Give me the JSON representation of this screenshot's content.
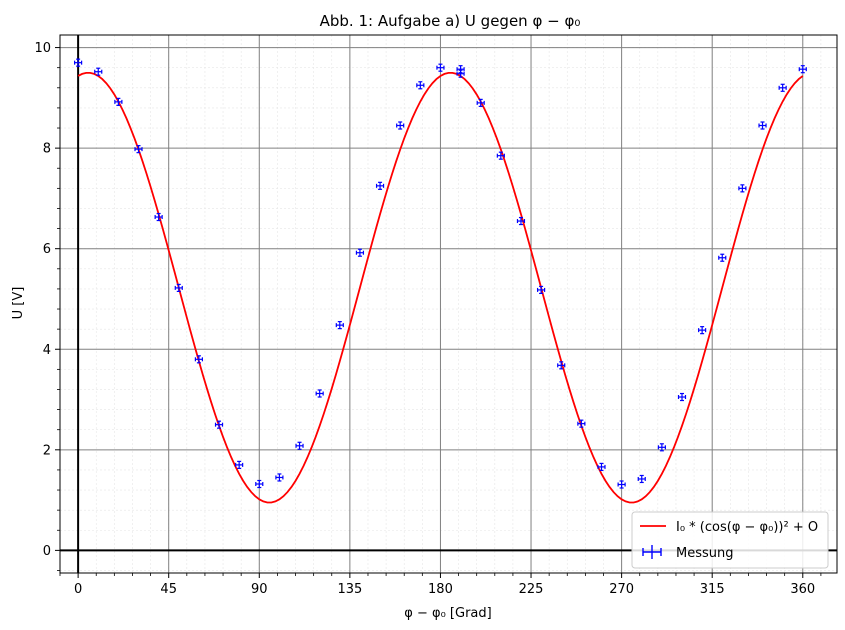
{
  "chart_data": {
    "type": "scatter",
    "title": "Abb. 1: Aufgabe a) U gegen φ − φ₀",
    "xlabel": "φ − φ₀ [Grad]",
    "ylabel": "U [V]",
    "xlim": [
      -9,
      377
    ],
    "ylim": [
      -0.45,
      10.25
    ],
    "x_ticks": [
      0,
      45,
      90,
      135,
      180,
      225,
      270,
      315,
      360
    ],
    "y_ticks": [
      0,
      2,
      4,
      6,
      8,
      10
    ],
    "grid": true,
    "legend_position": "lower right",
    "series": [
      {
        "name": "Messung",
        "kind": "errorbar",
        "color": "#0000ff",
        "x": [
          0,
          10,
          20,
          30,
          40,
          50,
          60,
          70,
          80,
          90,
          100,
          110,
          120,
          130,
          140,
          150,
          160,
          170,
          180,
          190,
          190,
          200,
          210,
          220,
          230,
          240,
          250,
          260,
          270,
          280,
          290,
          300,
          310,
          320,
          330,
          340,
          350,
          360
        ],
        "y": [
          9.7,
          9.52,
          8.92,
          7.98,
          6.63,
          5.22,
          3.8,
          2.5,
          1.7,
          1.32,
          1.45,
          2.08,
          3.12,
          4.48,
          5.92,
          7.25,
          8.45,
          9.25,
          9.6,
          9.57,
          9.48,
          8.9,
          7.85,
          6.55,
          5.18,
          3.68,
          2.52,
          1.66,
          1.31,
          1.42,
          2.05,
          3.05,
          4.38,
          5.82,
          7.2,
          8.45,
          9.2,
          9.57
        ]
      },
      {
        "name": "I₀ * (cos(φ − φ₀))² + O",
        "kind": "fit",
        "color": "#ff0000",
        "amplitude": 8.55,
        "offset": 0.95,
        "phase_deg": 5,
        "x_range": [
          0,
          360
        ]
      }
    ]
  }
}
